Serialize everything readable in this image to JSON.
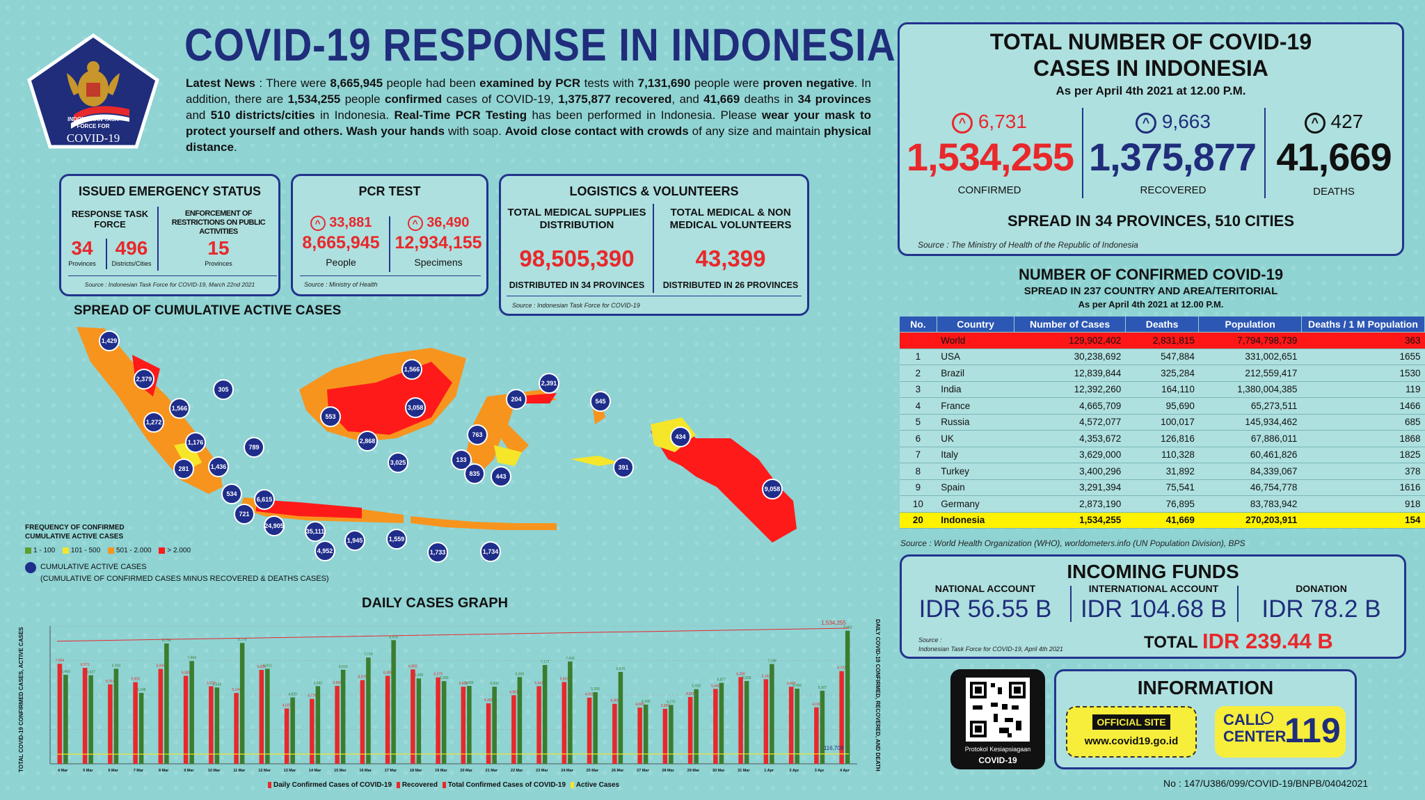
{
  "header": {
    "logo_text_1": "INDONESIAN TASK",
    "logo_text_2": "FORCE FOR",
    "logo_text_3": "COVID-19",
    "title": "COVID-19 RESPONSE IN INDONESIA"
  },
  "news": {
    "p1": "Latest News",
    "p2": " : There were ",
    "p3": "8,665,945",
    "p4": " people had been ",
    "p5": "examined by PCR",
    "p6": " tests with ",
    "p7": "7,131,690",
    "p8": " people were ",
    "p9": "proven negative",
    "p10": ". In addition, there are ",
    "p11": "1,534,255",
    "p12": " people ",
    "p13": "confirmed",
    "p14": " cases of COVID-19, ",
    "p15": "1,375,877 recovered",
    "p16": ", and ",
    "p17": "41,669",
    "p18": " deaths in ",
    "p19": "34 provinces",
    "p20": " and ",
    "p21": "510 districts/cities",
    "p22": " in Indonesia. ",
    "p23": "Real-Time PCR Testing",
    "p24": " has been performed in Indonesia. Please ",
    "p25": "wear your mask to protect yourself and others. Wash your hands",
    "p26": " with soap. ",
    "p27": "Avoid close contact with crowds",
    "p28": " of any size and maintain ",
    "p29": "physical distance",
    "p30": "."
  },
  "emergency": {
    "title": "ISSUED EMERGENCY STATUS",
    "col1_title": "RESPONSE TASK FORCE",
    "col2_title": "ENFORCEMENT OF RESTRICTIONS ON PUBLIC ACTIVITIES",
    "provinces_num": "34",
    "provinces_label": "Provinces",
    "districts_num": "496",
    "districts_label": "Districts/Cities",
    "enforce_num": "15",
    "enforce_label": "Provinces",
    "source": "Source : Indonesian Task Force for COVID-19, March 22nd 2021"
  },
  "pcr": {
    "title": "PCR TEST",
    "people_delta": "33,881",
    "people_total": "8,665,945",
    "people_label": "People",
    "spec_delta": "36,490",
    "spec_total": "12,934,155",
    "spec_label": "Specimens",
    "source": "Source : Ministry of Health"
  },
  "logistics": {
    "title": "LOGISTICS & VOLUNTEERS",
    "supplies_title": "TOTAL MEDICAL SUPPLIES DISTRIBUTION",
    "supplies_num": "98,505,390",
    "supplies_sub": "DISTRIBUTED IN 34 PROVINCES",
    "vol_title": "TOTAL MEDICAL & NON MEDICAL VOLUNTEERS",
    "vol_num": "43,399",
    "vol_sub": "DISTRIBUTED IN 26 PROVINCES",
    "source": "Source : Indonesian Task Force for COVID-19"
  },
  "total": {
    "title_1": "TOTAL NUMBER OF COVID-19",
    "title_2": "CASES IN INDONESIA",
    "as_per": "As per April 4th 2021 at 12.00 P.M.",
    "confirmed_delta": "6,731",
    "confirmed": "1,534,255",
    "confirmed_label": "CONFIRMED",
    "recovered_delta": "9,663",
    "recovered": "1,375,877",
    "recovered_label": "RECOVERED",
    "deaths_delta": "427",
    "deaths": "41,669",
    "deaths_label": "DEATHS",
    "spread": "SPREAD IN 34 PROVINCES, 510 CITIES",
    "source": "Source : The Ministry of Health of the Republic of Indonesia"
  },
  "world": {
    "title": "NUMBER OF CONFIRMED COVID-19",
    "subtitle": "SPREAD IN 237 COUNTRY AND AREA/TERITORIAL",
    "as_per": "As per April 4th 2021 at 12.00 P.M.",
    "headers": [
      "No.",
      "Country",
      "Number of Cases",
      "Deaths",
      "Population",
      "Deaths / 1 M Population"
    ],
    "rows": [
      [
        "",
        "World",
        "129,902,402",
        "2,831,815",
        "7,794,798,739",
        "363"
      ],
      [
        "1",
        "USA",
        "30,238,692",
        "547,884",
        "331,002,651",
        "1655"
      ],
      [
        "2",
        "Brazil",
        "12,839,844",
        "325,284",
        "212,559,417",
        "1530"
      ],
      [
        "3",
        "India",
        "12,392,260",
        "164,110",
        "1,380,004,385",
        "119"
      ],
      [
        "4",
        "France",
        "4,665,709",
        "95,690",
        "65,273,511",
        "1466"
      ],
      [
        "5",
        "Russia",
        "4,572,077",
        "100,017",
        "145,934,462",
        "685"
      ],
      [
        "6",
        "UK",
        "4,353,672",
        "126,816",
        "67,886,011",
        "1868"
      ],
      [
        "7",
        "Italy",
        "3,629,000",
        "110,328",
        "60,461,826",
        "1825"
      ],
      [
        "8",
        "Turkey",
        "3,400,296",
        "31,892",
        "84,339,067",
        "378"
      ],
      [
        "9",
        "Spain",
        "3,291,394",
        "75,541",
        "46,754,778",
        "1616"
      ],
      [
        "10",
        "Germany",
        "2,873,190",
        "76,895",
        "83,783,942",
        "918"
      ],
      [
        "20",
        "Indonesia",
        "1,534,255",
        "41,669",
        "270,203,911",
        "154"
      ]
    ],
    "source": "Source : World Health Organization (WHO), worldometers.info (UN Population Division), BPS"
  },
  "funds": {
    "title": "INCOMING FUNDS",
    "national_label": "NATIONAL ACCOUNT",
    "national_val": "IDR 56.55 B",
    "international_label": "INTERNATIONAL ACCOUNT",
    "international_val": "IDR 104.68 B",
    "donation_label": "DONATION",
    "donation_val": "IDR 78.2 B",
    "total_label": "TOTAL",
    "total_val": "IDR 239.44 B",
    "source_1": "Source :",
    "source_2": "Indonesian Task Force for COVID-19, April 4th 2021"
  },
  "qr": {
    "label_1": "Protokol Kesiapsiagaan",
    "label_2": "COVID-19"
  },
  "info": {
    "title": "INFORMATION",
    "official_site": "OFFICIAL SITE",
    "url": "www.covid19.go.id",
    "call_1": "CALL",
    "call_2": "CENTER",
    "call_num": "119"
  },
  "doc_no": "No : 147/U386/099/COVID-19/BNPB/04042021",
  "map": {
    "title": "SPREAD OF CUMULATIVE ACTIVE CASES",
    "legend_title_1": "FREQUENCY OF CONFIRMED",
    "legend_title_2": "CUMULATIVE ACTIVE CASES",
    "legend_items": [
      {
        "label": "1 - 100",
        "color": "#5aa02c"
      },
      {
        "label": "101 - 500",
        "color": "#f5e62a"
      },
      {
        "label": "501 - 2.000",
        "color": "#f7941d"
      },
      {
        "label": "> 2.000",
        "color": "#ff1a1a"
      }
    ],
    "bubble_legend": "CUMULATIVE ACTIVE CASES",
    "bubble_legend_sub": "(CUMULATIVE OF CONFIRMED CASES MINUS RECOVERED & DEATHS CASES)",
    "bubbles": [
      "1,429",
      "2,379",
      "1,566",
      "1,272",
      "1,176",
      "281",
      "1,436",
      "534",
      "721",
      "789",
      "305",
      "6,615",
      "24,905",
      "35,111",
      "4,952",
      "1,945",
      "1,559",
      "1,733",
      "1,734",
      "553",
      "2,868",
      "3,025",
      "3,058",
      "1,566",
      "204",
      "2,391",
      "763",
      "133",
      "835",
      "443",
      "545",
      "434",
      "391",
      "9,058"
    ]
  },
  "chart_data": {
    "type": "bar",
    "title": "DAILY CASES GRAPH",
    "ylabel_left": "TOTAL COVID-19 CONFIRMED CASES, ACTIVE CASES",
    "ylabel_right": "DAILY COVID-19 CONFIRMED, RECOVERED, AND DEATH",
    "categories": [
      "4 Mar",
      "5 Mar",
      "6 Mar",
      "7 Mar",
      "8 Mar",
      "9 Mar",
      "10 Mar",
      "11 Mar",
      "12 Mar",
      "13 Mar",
      "14 Mar",
      "15 Mar",
      "16 Mar",
      "17 Mar",
      "18 Mar",
      "19 Mar",
      "20 Mar",
      "21 Mar",
      "22 Mar",
      "23 Mar",
      "24 Mar",
      "25 Mar",
      "26 Mar",
      "27 Mar",
      "28 Mar",
      "29 Mar",
      "30 Mar",
      "31 Mar",
      "1 Apr",
      "2 Apr",
      "3 Apr",
      "4 Apr"
    ],
    "series": [
      {
        "name": "Daily Confirmed Cases of COVID-19",
        "color": "#e8282b",
        "values": [
          7264,
          6971,
          5767,
          5926,
          6894,
          6389,
          5633,
          5144,
          6820,
          4020,
          4716,
          5656,
          6078,
          6389,
          6855,
          6279,
          5600,
          4396,
          4981,
          5641,
          5937,
          4811,
          4360,
          4085,
          3993,
          4855,
          5440,
          6300,
          6142,
          5600,
          4100,
          6731
        ]
      },
      {
        "name": "Recovered",
        "color": "#3b7d2e",
        "values": [
          6460,
          6427,
          6903,
          5148,
          8739,
          7464,
          5542,
          8776,
          6901,
          4820,
          5642,
          6830,
          7716,
          8976,
          6200,
          6000,
          5656,
          5600,
          6300,
          7177,
          7433,
          5200,
          6670,
          4300,
          4275,
          5418,
          5877,
          6009,
          7248,
          5456,
          5307,
          9663
        ]
      }
    ],
    "line_series": [
      {
        "name": "Total Confirmed Cases of COVID-19",
        "color": "#e8282b",
        "end_label": "1,534,255"
      },
      {
        "name": "Active Cases",
        "color": "#f5e62a",
        "end_label": "116,709"
      }
    ],
    "legend": [
      "Daily Confirmed Cases of COVID-19",
      "Recovered",
      "Total Confirmed Cases of COVID-19",
      "Active Cases"
    ],
    "ylim": [
      0,
      10000
    ]
  }
}
